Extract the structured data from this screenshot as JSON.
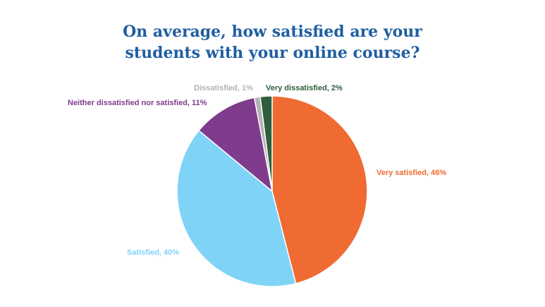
{
  "chart_data": {
    "type": "pie",
    "title_lines": [
      "On average, how satisfied are your",
      "students with your online course?"
    ],
    "slices": [
      {
        "label": "Very satisfied, 46%",
        "name": "Very satisfied",
        "value": 46,
        "color": "#f06b31"
      },
      {
        "label": "Satisfied, 40%",
        "name": "Satisfied",
        "value": 40,
        "color": "#7fd3f7"
      },
      {
        "label": "Neither dissatisfied nor satisfied, 11%",
        "name": "Neither dissatisfied nor satisfied",
        "value": 11,
        "color": "#7f3b8c"
      },
      {
        "label": "Dissatisfied, 1%",
        "name": "Dissatisfied",
        "value": 1,
        "color": "#b3b3b3"
      },
      {
        "label": "Very dissatisfied, 2%",
        "name": "Very dissatisfied",
        "value": 2,
        "color": "#2e5e3e"
      }
    ],
    "label_colors": [
      "#f06b31",
      "#7fd3f7",
      "#7f3b8c",
      "#b3b3b3",
      "#2e5e3e"
    ],
    "title_color": "#1f5ea0"
  }
}
